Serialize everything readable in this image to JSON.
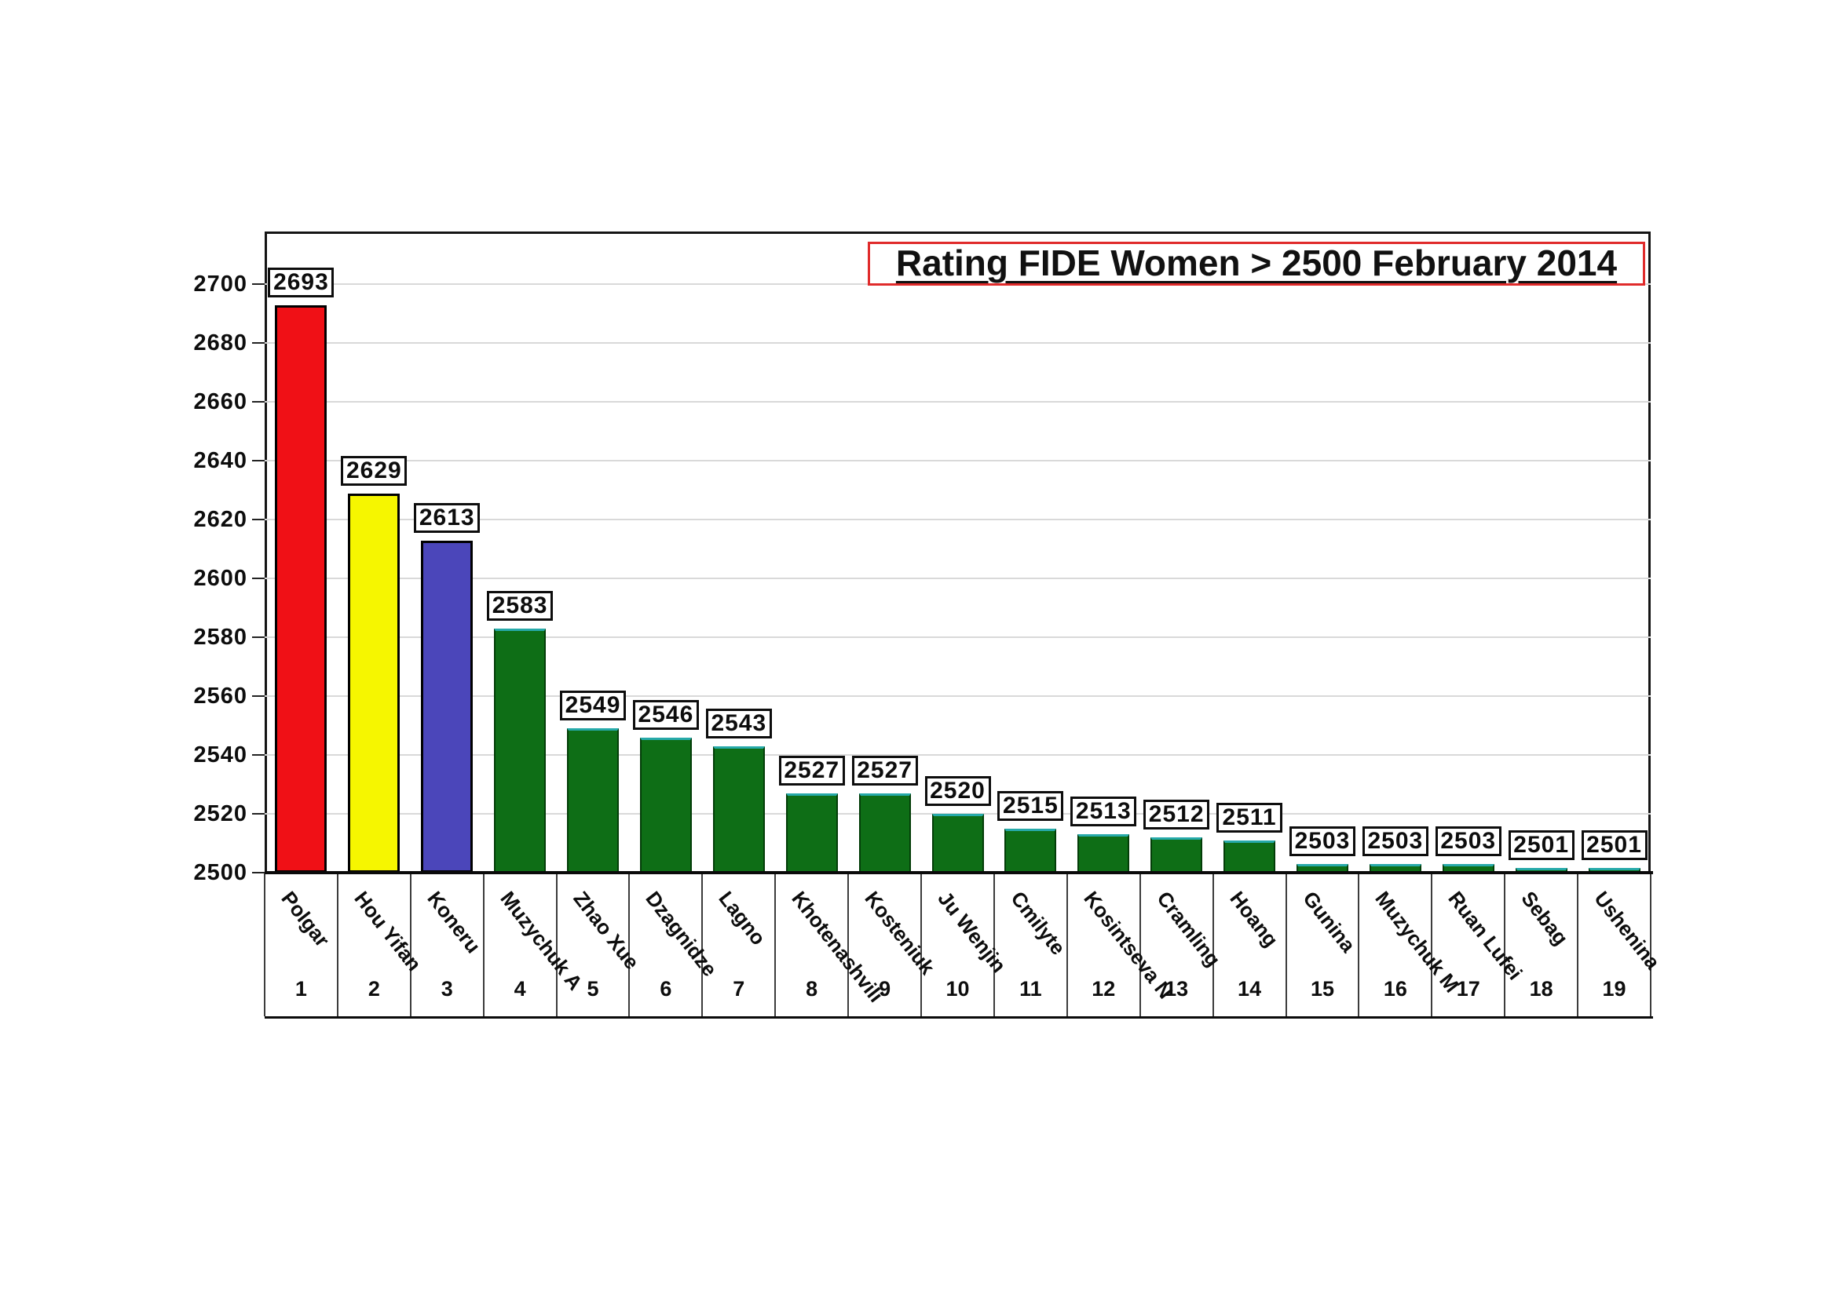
{
  "chart_data": {
    "type": "bar",
    "title": "Rating FIDE Women > 2500 February 2014",
    "xlabel": "",
    "ylabel": "",
    "categories": [
      "Polgar",
      "Hou Yifan",
      "Koneru",
      "Muzychuk A",
      "Zhao Xue",
      "Dzagnidze",
      "Lagno",
      "Khotenashvili",
      "Kosteniuk",
      "Ju Wenjin",
      "Cmilyte",
      "Kosintseva N",
      "Cramling",
      "Hoang",
      "Gunina",
      "Muzychuk M",
      "Ruan Lufei",
      "Sebag",
      "Ushenina"
    ],
    "ranks": [
      1,
      2,
      3,
      4,
      5,
      6,
      7,
      8,
      9,
      10,
      11,
      12,
      13,
      14,
      15,
      16,
      17,
      18,
      19
    ],
    "values": [
      2693,
      2629,
      2613,
      2583,
      2549,
      2546,
      2543,
      2527,
      2527,
      2520,
      2515,
      2513,
      2512,
      2511,
      2503,
      2503,
      2503,
      2501,
      2501
    ],
    "bar_colors": [
      "#f01016",
      "#f6f600",
      "#4b46ba",
      "#0e6e16",
      "#0e6e16",
      "#0e6e16",
      "#0e6e16",
      "#0e6e16",
      "#0e6e16",
      "#0e6e16",
      "#0e6e16",
      "#0e6e16",
      "#0e6e16",
      "#0e6e16",
      "#0e6e16",
      "#0e6e16",
      "#0e6e16",
      "#0e6e16",
      "#0e6e16"
    ],
    "value_labels_boxed": true,
    "ylim": [
      2500,
      2718
    ],
    "yticks": [
      2500,
      2520,
      2540,
      2560,
      2580,
      2600,
      2620,
      2640,
      2660,
      2680,
      2700
    ],
    "grid": true,
    "legend": false
  },
  "colors": {
    "bar_red": "#f01016",
    "bar_yellow": "#f6f600",
    "bar_blue": "#4b46ba",
    "bar_green": "#0e6e16",
    "green_top_edge": "#27aaaa",
    "title_border": "#e02b2b",
    "gridline": "#d9d9d9",
    "axis": "#0a0a0a",
    "page_background": "#ffffff"
  }
}
